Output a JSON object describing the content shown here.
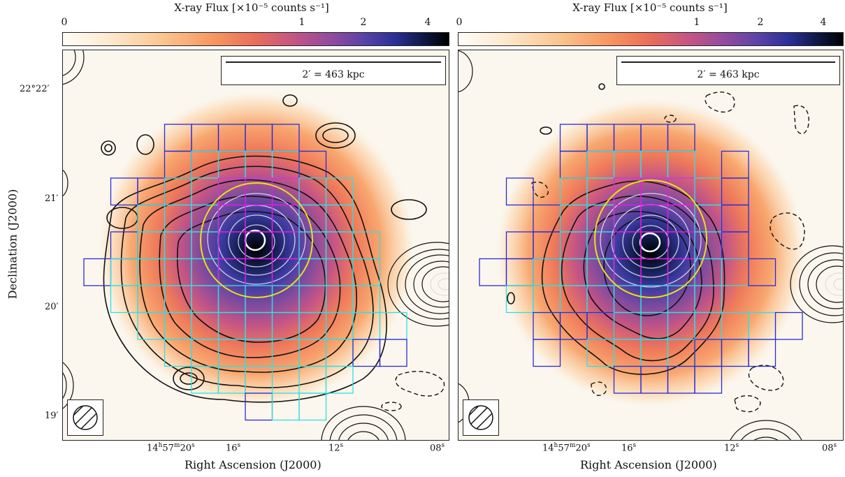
{
  "colorbar": {
    "title": "X-ray Flux [×10⁻⁵ counts s⁻¹]",
    "ticks": [
      "0",
      "1",
      "2",
      "4"
    ],
    "stops": [
      "#fffdf8",
      "#fbc58f",
      "#e86d5b",
      "#8e4a9f",
      "#2a2f97",
      "#000000"
    ]
  },
  "panels": [
    {
      "scale_label": "2′ = 463 kpc",
      "xlabel": "Right Ascension (J2000)"
    },
    {
      "scale_label": "2′ = 463 kpc",
      "xlabel": "Right Ascension (J2000)"
    }
  ],
  "ylabel": "Declination (J2000)",
  "y_ticks": [
    "22°22′",
    "21′",
    "20′",
    "19′"
  ],
  "x_ticks": {
    "first_h": "14",
    "first_h_unit": "h",
    "first_m": "57",
    "first_m_unit": "m",
    "first_s": "20",
    "first_s_unit": "s",
    "t2": "16",
    "t3": "12",
    "t4": "08",
    "sec_unit": "s"
  },
  "colors": {
    "region_blue": "#2b2bd6",
    "region_cyan": "#2fe0e0",
    "region_magenta": "#e020e0",
    "ellipse": "#e8e020"
  }
}
